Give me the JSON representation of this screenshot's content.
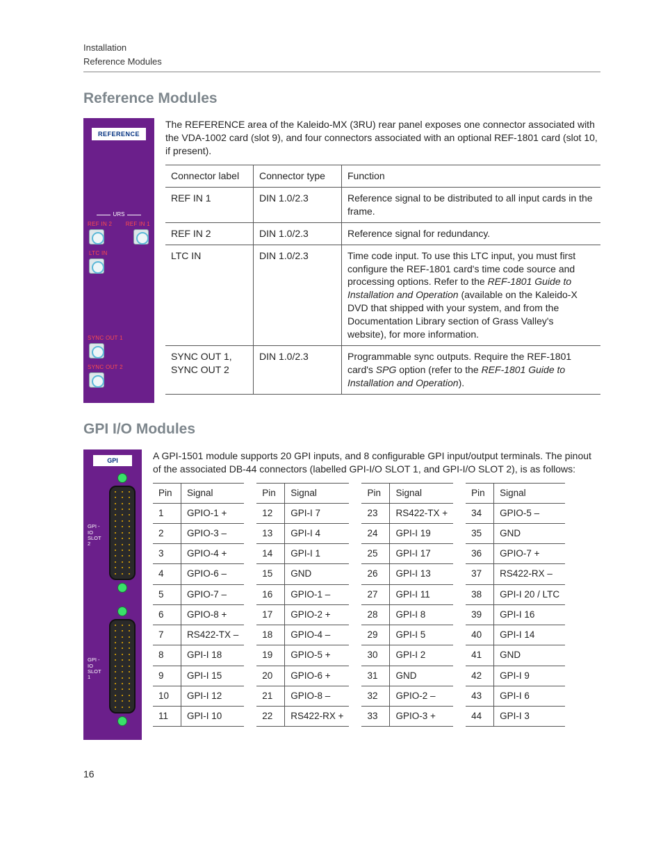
{
  "page": {
    "header_line1": "Installation",
    "header_line2": "Reference Modules",
    "number": "16"
  },
  "colors": {
    "panel_bg": "#6b1f8b",
    "heading": "#7d868c",
    "label_red": "#ff4d4d",
    "title_blue": "#002f7f",
    "screw_green": "#39e06a",
    "pin_gold": "#f5b400",
    "rule": "#555555"
  },
  "ref": {
    "heading": "Reference Modules",
    "intro": "The REFERENCE area of the Kaleido-MX (3RU) rear panel exposes one connector associated with the VDA-1002 card (slot 9), and four connectors associated with an optional REF-1801 card (slot 10, if present).",
    "panel_title": "REFERENCE",
    "urs_label": "URS",
    "labels": {
      "refin1": "REF IN 1",
      "refin2": "REF IN 2",
      "ltcin": "LTC IN",
      "sync1": "SYNC OUT 1",
      "sync2": "SYNC OUT 2"
    },
    "table": {
      "headers": [
        "Connector label",
        "Connector type",
        "Function"
      ],
      "rows": [
        {
          "label": "REF IN 1",
          "type": "DIN 1.0/2.3",
          "func": "Reference signal to be distributed to all input cards in the frame."
        },
        {
          "label": "REF IN 2",
          "type": "DIN 1.0/2.3",
          "func": "Reference signal for redundancy."
        },
        {
          "label": "LTC IN",
          "type": "DIN 1.0/2.3",
          "func_pre": "Time code input. To use this LTC input, you must first configure the REF-1801 card's time code source and processing options. Refer to the ",
          "func_em": "REF-1801 Guide to Installation and Operation",
          "func_post": " (available on the Kaleido-X DVD that shipped with your system, and from the Documentation Library section of Grass Valley's website), for more information."
        },
        {
          "label": "SYNC OUT 1, SYNC OUT 2",
          "type": "DIN 1.0/2.3",
          "func_pre": "Programmable sync outputs. Require the REF-1801 card's ",
          "func_em1": "SPG",
          "func_mid": " option (refer to the ",
          "func_em2": "REF-1801 Guide to Installation and Operation",
          "func_post": ")."
        }
      ]
    }
  },
  "gpi": {
    "heading": "GPI I/O Modules",
    "intro": "A GPI-1501 module supports 20 GPI inputs, and 8 configurable GPI input/output terminals. The pinout of the associated DB-44 connectors (labelled GPI-I/O SLOT 1, and GPI-I/O SLOT 2), is as follows:",
    "panel_title": "GPI",
    "slot2_label_a": "GPI - IO",
    "slot2_label_b": "SLOT 2",
    "slot1_label_a": "GPI - IO",
    "slot1_label_b": "SLOT 1",
    "headers": [
      "Pin",
      "Signal"
    ],
    "cols": [
      [
        {
          "p": "1",
          "s": "GPIO-1 +"
        },
        {
          "p": "2",
          "s": "GPIO-3 –"
        },
        {
          "p": "3",
          "s": "GPIO-4 +"
        },
        {
          "p": "4",
          "s": "GPIO-6 –"
        },
        {
          "p": "5",
          "s": "GPIO-7 –"
        },
        {
          "p": "6",
          "s": "GPIO-8 +"
        },
        {
          "p": "7",
          "s": "RS422-TX –"
        },
        {
          "p": "8",
          "s": "GPI-I 18"
        },
        {
          "p": "9",
          "s": "GPI-I 15"
        },
        {
          "p": "10",
          "s": "GPI-I 12"
        },
        {
          "p": "11",
          "s": "GPI-I 10"
        }
      ],
      [
        {
          "p": "12",
          "s": "GPI-I 7"
        },
        {
          "p": "13",
          "s": "GPI-I 4"
        },
        {
          "p": "14",
          "s": "GPI-I 1"
        },
        {
          "p": "15",
          "s": "GND"
        },
        {
          "p": "16",
          "s": "GPIO-1 –"
        },
        {
          "p": "17",
          "s": "GPIO-2 +"
        },
        {
          "p": "18",
          "s": "GPIO-4 –"
        },
        {
          "p": "19",
          "s": "GPIO-5 +"
        },
        {
          "p": "20",
          "s": "GPIO-6 +"
        },
        {
          "p": "21",
          "s": "GPIO-8 –"
        },
        {
          "p": "22",
          "s": "RS422-RX +"
        }
      ],
      [
        {
          "p": "23",
          "s": "RS422-TX +"
        },
        {
          "p": "24",
          "s": "GPI-I 19"
        },
        {
          "p": "25",
          "s": "GPI-I 17"
        },
        {
          "p": "26",
          "s": "GPI-I 13"
        },
        {
          "p": "27",
          "s": "GPI-I 11"
        },
        {
          "p": "28",
          "s": "GPI-I 8"
        },
        {
          "p": "29",
          "s": "GPI-I 5"
        },
        {
          "p": "30",
          "s": "GPI-I 2"
        },
        {
          "p": "31",
          "s": "GND"
        },
        {
          "p": "32",
          "s": "GPIO-2 –"
        },
        {
          "p": "33",
          "s": "GPIO-3 +"
        }
      ],
      [
        {
          "p": "34",
          "s": "GPIO-5 –"
        },
        {
          "p": "35",
          "s": "GND"
        },
        {
          "p": "36",
          "s": "GPIO-7 +"
        },
        {
          "p": "37",
          "s": "RS422-RX –"
        },
        {
          "p": "38",
          "s": "GPI-I 20 / LTC"
        },
        {
          "p": "39",
          "s": "GPI-I 16"
        },
        {
          "p": "40",
          "s": "GPI-I 14"
        },
        {
          "p": "41",
          "s": "GND"
        },
        {
          "p": "42",
          "s": "GPI-I 9"
        },
        {
          "p": "43",
          "s": "GPI-I 6"
        },
        {
          "p": "44",
          "s": "GPI-I 3"
        }
      ]
    ]
  }
}
